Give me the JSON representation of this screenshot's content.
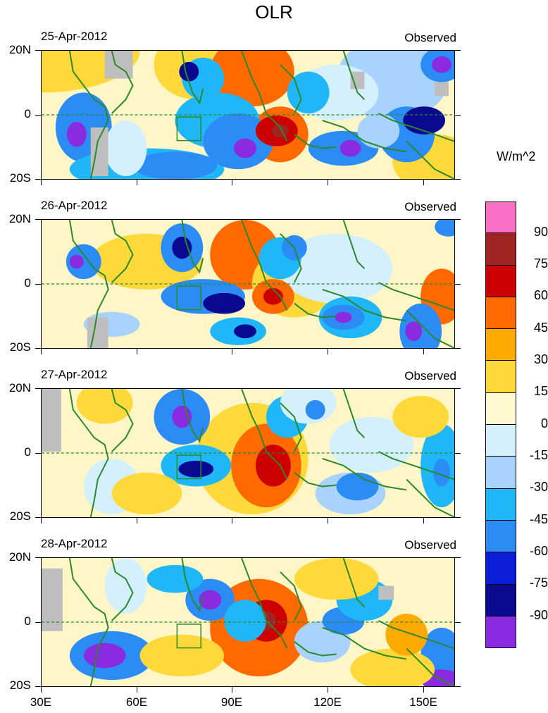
{
  "title": "OLR",
  "units": "W/m^2",
  "panels": [
    {
      "date": "25-Apr-2012",
      "label": "Observed"
    },
    {
      "date": "26-Apr-2012",
      "label": "Observed"
    },
    {
      "date": "27-Apr-2012",
      "label": "Observed"
    },
    {
      "date": "28-Apr-2012",
      "label": "Observed"
    }
  ],
  "y_ticks": [
    "20N",
    "0",
    "20S"
  ],
  "x_ticks": [
    "30E",
    "60E",
    "90E",
    "120E",
    "150E"
  ],
  "legend": {
    "labels": [
      "90",
      "75",
      "60",
      "45",
      "30",
      "15",
      "0",
      "-15",
      "-30",
      "-45",
      "-60",
      "-75",
      "-90"
    ],
    "colors": [
      "#f970c4",
      "#a12424",
      "#cc0000",
      "#ff6a00",
      "#ffaa00",
      "#ffd83a",
      "#fffad2",
      "#d4f0ff",
      "#a8d3ff",
      "#1fb7f7",
      "#2b8cf5",
      "#0a1ed8",
      "#0a0a90",
      "#8a2be2"
    ]
  },
  "colors": {
    "land_outline": "#2a8a2a",
    "missing": "#bebebe",
    "equator": "#2a8a2a"
  }
}
